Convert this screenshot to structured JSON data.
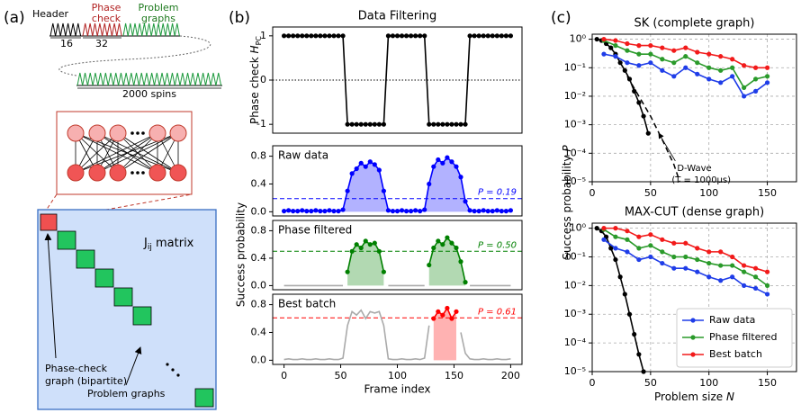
{
  "panels": {
    "a": "(a)",
    "b": "(b)",
    "c": "(c)"
  },
  "diagram": {
    "header": "Header",
    "phase_check": [
      "Phase",
      "check"
    ],
    "problem_graphs_top": [
      "Problem",
      "graphs"
    ],
    "header_length": "16",
    "phase_length": "32",
    "spins": "2000 spins",
    "matrix_label": [
      "J",
      "ij",
      " matrix"
    ],
    "phase_graph": [
      "Phase-check",
      "graph (bipartite)"
    ],
    "problem_graphs": "Problem graphs"
  },
  "chart_data": [
    {
      "type": "line",
      "title": "Data Filtering",
      "ylabel": [
        "Phase check ",
        "H",
        "PC"
      ],
      "xlim": [
        -10,
        210
      ],
      "ylim": [
        -1.2,
        1.2
      ],
      "yticks": [
        -1,
        0,
        1
      ],
      "hline": {
        "value": 0,
        "style": "dotted"
      },
      "x": [
        0,
        4,
        8,
        12,
        16,
        20,
        24,
        28,
        32,
        36,
        40,
        44,
        48,
        52,
        56,
        60,
        64,
        68,
        72,
        76,
        80,
        84,
        88,
        92,
        96,
        100,
        104,
        108,
        112,
        116,
        120,
        124,
        128,
        132,
        136,
        140,
        144,
        148,
        152,
        156,
        160,
        164,
        168,
        172,
        176,
        180,
        184,
        188,
        192,
        196,
        200
      ],
      "series": [
        {
          "color": "#000000",
          "markers": true,
          "values": [
            1,
            1,
            1,
            1,
            1,
            1,
            1,
            1,
            1,
            1,
            1,
            1,
            1,
            1,
            -1,
            -1,
            -1,
            -1,
            -1,
            -1,
            -1,
            -1,
            -1,
            1,
            1,
            1,
            1,
            1,
            1,
            1,
            1,
            1,
            -1,
            -1,
            -1,
            -1,
            -1,
            -1,
            -1,
            -1,
            -1,
            1,
            1,
            1,
            1,
            1,
            1,
            1,
            1,
            1,
            1
          ]
        }
      ]
    },
    {
      "type": "line",
      "label": "Raw data",
      "xlim": [
        -10,
        210
      ],
      "ylim": [
        -0.06,
        0.95
      ],
      "yticks": [
        {
          "value": 0,
          "label": "0.0"
        },
        {
          "value": 0.4,
          "label": "0.4"
        },
        {
          "value": 0.8,
          "label": "0.8"
        }
      ],
      "hline": {
        "value": 0.19,
        "label": "P = 0.19",
        "color": "#0000ff"
      },
      "x": [
        0,
        4,
        8,
        12,
        16,
        20,
        24,
        28,
        32,
        36,
        40,
        44,
        48,
        52,
        56,
        60,
        64,
        68,
        72,
        76,
        80,
        84,
        88,
        92,
        96,
        100,
        104,
        108,
        112,
        116,
        120,
        124,
        128,
        132,
        136,
        140,
        144,
        148,
        152,
        156,
        160,
        164,
        168,
        172,
        176,
        180,
        184,
        188,
        192,
        196,
        200
      ],
      "series": [
        {
          "color": "#0000ff",
          "markers": true,
          "fill": true,
          "values": [
            0.01,
            0.02,
            0.01,
            0.01,
            0.02,
            0.01,
            0.01,
            0.02,
            0.01,
            0.01,
            0.02,
            0.01,
            0.01,
            0.03,
            0.3,
            0.55,
            0.62,
            0.7,
            0.65,
            0.72,
            0.68,
            0.6,
            0.3,
            0.02,
            0.01,
            0.01,
            0.02,
            0.01,
            0.01,
            0.02,
            0.01,
            0.03,
            0.4,
            0.65,
            0.75,
            0.7,
            0.78,
            0.72,
            0.65,
            0.5,
            0.15,
            0.02,
            0.01,
            0.01,
            0.02,
            0.01,
            0.01,
            0.02,
            0.01,
            0.01,
            0.02
          ]
        }
      ]
    },
    {
      "type": "line",
      "label": "Phase filtered",
      "ylabel": "Success probability",
      "xlim": [
        -10,
        210
      ],
      "ylim": [
        -0.06,
        0.95
      ],
      "yticks": [
        {
          "value": 0,
          "label": "0.0"
        },
        {
          "value": 0.4,
          "label": "0.4"
        },
        {
          "value": 0.8,
          "label": "0.8"
        }
      ],
      "hline": {
        "value": 0.5,
        "label": "P = 0.50",
        "color": "#008000"
      },
      "x": [
        0,
        4,
        8,
        12,
        16,
        20,
        24,
        28,
        32,
        36,
        40,
        44,
        48,
        52,
        56,
        60,
        64,
        68,
        72,
        76,
        80,
        84,
        88,
        92,
        96,
        100,
        104,
        108,
        112,
        116,
        120,
        124,
        128,
        132,
        136,
        140,
        144,
        148,
        152,
        156,
        160,
        164,
        168,
        172,
        176,
        180,
        184,
        188,
        192,
        196,
        200
      ],
      "series": [
        {
          "color": "#aaaaaa",
          "markers": false,
          "values": [
            0,
            0,
            0,
            0,
            0,
            0,
            0,
            0,
            0,
            0,
            0,
            0,
            0,
            0,
            null,
            null,
            null,
            null,
            null,
            null,
            null,
            null,
            null,
            0,
            0,
            0,
            0,
            0,
            0,
            0,
            0,
            0,
            null,
            null,
            null,
            null,
            null,
            null,
            null,
            null,
            null,
            0,
            0,
            0,
            0,
            0,
            0,
            0,
            0,
            0,
            0
          ]
        },
        {
          "color": "#008000",
          "markers": true,
          "fill": true,
          "values": [
            null,
            null,
            null,
            null,
            null,
            null,
            null,
            null,
            null,
            null,
            null,
            null,
            null,
            null,
            0.2,
            0.5,
            0.6,
            0.55,
            0.65,
            0.6,
            0.62,
            0.5,
            0.2,
            null,
            null,
            null,
            null,
            null,
            null,
            null,
            null,
            null,
            0.3,
            0.55,
            0.65,
            0.6,
            0.7,
            0.62,
            0.55,
            0.35,
            0.05,
            null,
            null,
            null,
            null,
            null,
            null,
            null,
            null,
            null,
            null
          ]
        }
      ]
    },
    {
      "type": "line",
      "label": "Best batch",
      "xlabel": "Frame index",
      "xlim": [
        -10,
        210
      ],
      "ylim": [
        -0.06,
        0.95
      ],
      "xticks": [
        0,
        50,
        100,
        150,
        200
      ],
      "yticks": [
        {
          "value": 0,
          "label": "0.0"
        },
        {
          "value": 0.4,
          "label": "0.4"
        },
        {
          "value": 0.8,
          "label": "0.8"
        }
      ],
      "hline": {
        "value": 0.61,
        "label": "P = 0.61",
        "color": "#ff0000"
      },
      "x": [
        0,
        4,
        8,
        12,
        16,
        20,
        24,
        28,
        32,
        36,
        40,
        44,
        48,
        52,
        56,
        60,
        64,
        68,
        72,
        76,
        80,
        84,
        88,
        92,
        96,
        100,
        104,
        108,
        112,
        116,
        120,
        124,
        128,
        132,
        136,
        140,
        144,
        148,
        152,
        156,
        160,
        164,
        168,
        172,
        176,
        180,
        184,
        188,
        192,
        196,
        200
      ],
      "series": [
        {
          "color": "#aaaaaa",
          "markers": false,
          "values": [
            0.01,
            0.02,
            0.01,
            0.01,
            0.02,
            0.01,
            0.01,
            0.02,
            0.01,
            0.01,
            0.02,
            0.01,
            0.01,
            0.03,
            0.5,
            0.7,
            0.65,
            0.72,
            0.6,
            0.7,
            0.68,
            0.7,
            0.5,
            0.02,
            0.01,
            0.01,
            0.02,
            0.01,
            0.01,
            0.02,
            0.01,
            0.03,
            0.5,
            null,
            null,
            null,
            null,
            null,
            null,
            0.4,
            0.1,
            0.02,
            0.01,
            0.01,
            0.02,
            0.01,
            0.01,
            0.02,
            0.01,
            0.01,
            0.02
          ]
        },
        {
          "color": "#ff0000",
          "markers": true,
          "fill": true,
          "values": [
            null,
            null,
            null,
            null,
            null,
            null,
            null,
            null,
            null,
            null,
            null,
            null,
            null,
            null,
            null,
            null,
            null,
            null,
            null,
            null,
            null,
            null,
            null,
            null,
            null,
            null,
            null,
            null,
            null,
            null,
            null,
            null,
            null,
            0.6,
            0.7,
            0.65,
            0.75,
            0.6,
            0.7,
            null,
            null,
            null,
            null,
            null,
            null,
            null,
            null,
            null,
            null,
            null,
            null
          ]
        }
      ]
    },
    {
      "type": "line",
      "title": "SK (complete graph)",
      "ylabel": [
        "Success probability ",
        "P"
      ],
      "log": true,
      "grid": true,
      "xlim": [
        0,
        175
      ],
      "ylim": [
        1e-05,
        1.5
      ],
      "yticks": [
        {
          "value": 1,
          "label": "10⁰"
        },
        {
          "value": 0.1,
          "label": "10⁻¹"
        },
        {
          "value": 0.01,
          "label": "10⁻²"
        },
        {
          "value": 0.001,
          "label": "10⁻³"
        },
        {
          "value": 0.0001,
          "label": "10⁻⁴"
        },
        {
          "value": 1e-05,
          "label": "10⁻⁵"
        }
      ],
      "xticks": [
        0,
        50,
        100,
        150
      ],
      "x": [
        10,
        20,
        30,
        40,
        50,
        60,
        70,
        80,
        90,
        100,
        110,
        120,
        130,
        140,
        150
      ],
      "series": [
        {
          "color": "#000000",
          "markers": true,
          "x": [
            4,
            8,
            12,
            16,
            20,
            24,
            28,
            32,
            36,
            40,
            44,
            48
          ],
          "values": [
            1,
            0.9,
            0.7,
            0.5,
            0.3,
            0.15,
            0.08,
            0.04,
            0.015,
            0.006,
            0.002,
            0.0005
          ]
        },
        {
          "color": "#000000",
          "markers": false,
          "dashed": true,
          "x": [
            30,
            40,
            50,
            60,
            70,
            75
          ],
          "values": [
            0.05,
            0.01,
            0.002,
            0.0003,
            4e-05,
            1e-05
          ]
        },
        {
          "color": "#1f3de8",
          "markers": true,
          "values": [
            0.3,
            0.25,
            0.15,
            0.12,
            0.15,
            0.08,
            0.05,
            0.1,
            0.06,
            0.04,
            0.03,
            0.05,
            0.01,
            0.015,
            0.03
          ]
        },
        {
          "color": "#2a9a2a",
          "markers": true,
          "values": [
            0.9,
            0.6,
            0.4,
            0.3,
            0.3,
            0.2,
            0.15,
            0.25,
            0.15,
            0.1,
            0.08,
            0.1,
            0.02,
            0.04,
            0.05
          ]
        },
        {
          "color": "#f21a1a",
          "markers": true,
          "values": [
            1,
            0.9,
            0.7,
            0.6,
            0.6,
            0.5,
            0.4,
            0.5,
            0.35,
            0.3,
            0.25,
            0.2,
            0.12,
            0.1,
            0.1
          ]
        }
      ],
      "annotation": {
        "text": [
          "D-Wave",
          "(T = 1000μs)"
        ],
        "xy": [
          57,
          0.0005
        ],
        "xytext": [
          82,
          3e-05
        ]
      }
    },
    {
      "type": "line",
      "title": "MAX-CUT (dense graph)",
      "xlabel": [
        "Problem size ",
        "N"
      ],
      "log": true,
      "grid": true,
      "xlim": [
        0,
        175
      ],
      "ylim": [
        1e-05,
        1.5
      ],
      "legend": "lower right",
      "yticks": [
        {
          "value": 1,
          "label": "10⁰"
        },
        {
          "value": 0.1,
          "label": "10⁻¹"
        },
        {
          "value": 0.01,
          "label": "10⁻²"
        },
        {
          "value": 0.001,
          "label": "10⁻³"
        },
        {
          "value": 0.0001,
          "label": "10⁻⁴"
        },
        {
          "value": 1e-05,
          "label": "10⁻⁵"
        }
      ],
      "xticks": [
        0,
        50,
        100,
        150
      ],
      "x": [
        10,
        20,
        30,
        40,
        50,
        60,
        70,
        80,
        90,
        100,
        110,
        120,
        130,
        140,
        150
      ],
      "series": [
        {
          "color": "#000000",
          "markers": true,
          "x": [
            4,
            8,
            12,
            16,
            20,
            24,
            28,
            32,
            36,
            40,
            44
          ],
          "values": [
            1,
            0.8,
            0.5,
            0.2,
            0.08,
            0.02,
            0.005,
            0.001,
            0.0002,
            4e-05,
            1e-05
          ]
        },
        {
          "name": "Raw data",
          "color": "#1f3de8",
          "markers": true,
          "values": [
            0.4,
            0.2,
            0.15,
            0.08,
            0.1,
            0.06,
            0.04,
            0.04,
            0.03,
            0.02,
            0.015,
            0.02,
            0.01,
            0.008,
            0.005
          ]
        },
        {
          "name": "Phase filtered",
          "color": "#2a9a2a",
          "markers": true,
          "values": [
            0.9,
            0.5,
            0.4,
            0.2,
            0.25,
            0.15,
            0.1,
            0.1,
            0.08,
            0.06,
            0.05,
            0.05,
            0.03,
            0.02,
            0.01
          ]
        },
        {
          "name": "Best batch",
          "color": "#f21a1a",
          "markers": true,
          "values": [
            1,
            1,
            0.8,
            0.5,
            0.6,
            0.4,
            0.3,
            0.3,
            0.2,
            0.15,
            0.15,
            0.1,
            0.05,
            0.04,
            0.03
          ]
        }
      ]
    }
  ]
}
